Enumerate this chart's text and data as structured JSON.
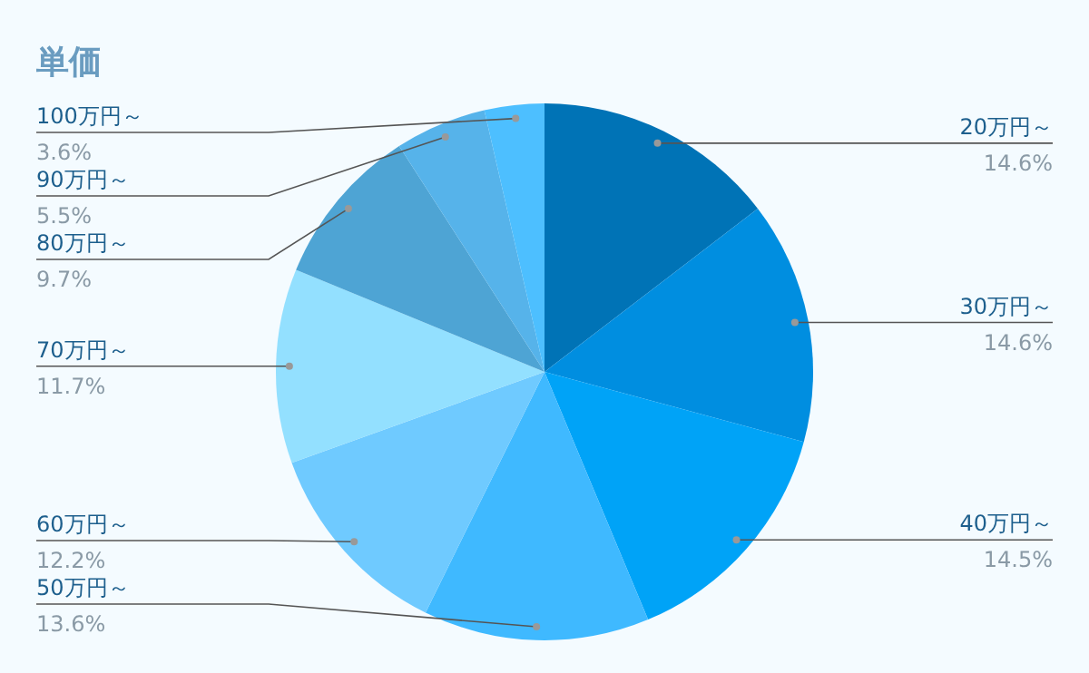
{
  "chart_data": {
    "type": "pie",
    "title": "単価",
    "categories": [
      "20万円～",
      "30万円～",
      "40万円～",
      "50万円～",
      "60万円～",
      "70万円～",
      "80万円～",
      "90万円～",
      "100万円～"
    ],
    "values": [
      14.6,
      14.6,
      14.5,
      13.6,
      12.2,
      11.7,
      9.7,
      5.5,
      3.6
    ],
    "colors": [
      "#0073b6",
      "#008ee0",
      "#00a3f7",
      "#3fb9ff",
      "#6fcaff",
      "#93e0ff",
      "#4ea4d4",
      "#56b3ea",
      "#4dbfff"
    ],
    "value_labels": [
      "14.6%",
      "14.6%",
      "14.5%",
      "13.6%",
      "12.2%",
      "11.7%",
      "9.7%",
      "5.5%",
      "3.6%"
    ]
  }
}
